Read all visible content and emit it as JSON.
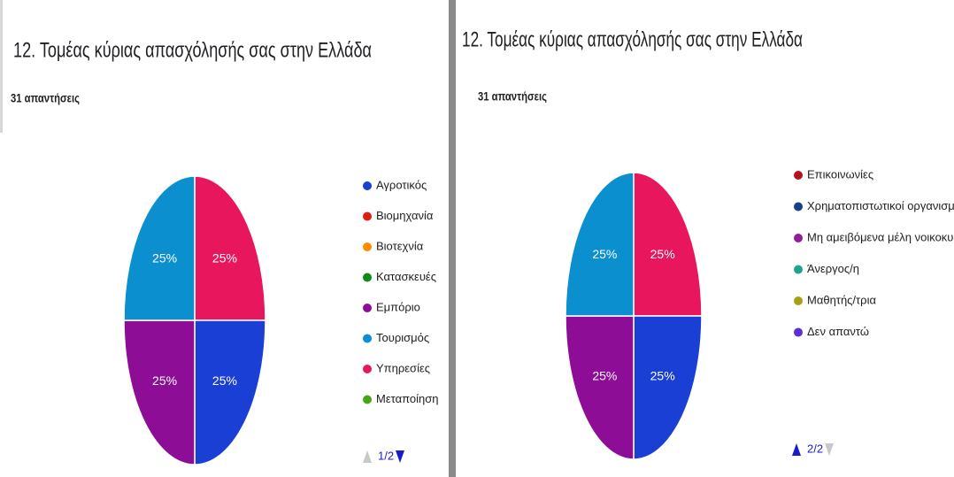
{
  "chart_data": [
    {
      "type": "pie",
      "title": "12. Τομέας κύριας απασχόλησής σας στην Ελλάδα",
      "subtitle": "31 απαντήσεις",
      "slices": [
        {
          "value": 25,
          "label": "25%",
          "color": "#e8175d"
        },
        {
          "value": 25,
          "label": "25%",
          "color": "#1a3fd4"
        },
        {
          "value": 25,
          "label": "25%",
          "color": "#8e0d96"
        },
        {
          "value": 25,
          "label": "25%",
          "color": "#0b8fcf"
        }
      ],
      "legend": [
        {
          "name": "Αγροτικός",
          "color": "#1a3fd4"
        },
        {
          "name": "Βιομηχανία",
          "color": "#dc1f12"
        },
        {
          "name": "Βιοτεχνία",
          "color": "#ff8c00"
        },
        {
          "name": "Κατασκευές",
          "color": "#0f8a1a"
        },
        {
          "name": "Εμπόριο",
          "color": "#8e0d96"
        },
        {
          "name": "Τουρισμός",
          "color": "#0b8fcf"
        },
        {
          "name": "Υπηρεσίες",
          "color": "#e8175d"
        },
        {
          "name": "Μεταποίηση",
          "color": "#4aa516"
        }
      ],
      "pager": "1/2"
    },
    {
      "type": "pie",
      "title": "12. Τομέας κύριας απασχόλησής σας στην Ελλάδα",
      "subtitle": "31 απαντήσεις",
      "slices": [
        {
          "value": 25,
          "label": "25%",
          "color": "#e8175d"
        },
        {
          "value": 25,
          "label": "25%",
          "color": "#1a3fd4"
        },
        {
          "value": 25,
          "label": "25%",
          "color": "#8e0d96"
        },
        {
          "value": 25,
          "label": "25%",
          "color": "#0b8fcf"
        }
      ],
      "legend": [
        {
          "name": "Επικοινωνίες",
          "color": "#b5121b"
        },
        {
          "name": "Χρηματοπιστωτικοί οργανισμοί",
          "color": "#173f8a"
        },
        {
          "name": "Μη αμειβόμενα μέλη νοικοκυριού",
          "color": "#8e1f96"
        },
        {
          "name": "Άνεργος/η",
          "color": "#1fa38c"
        },
        {
          "name": "Μαθητής/τρια",
          "color": "#a8a012"
        },
        {
          "name": "Δεν απαντώ",
          "color": "#5a2ed1"
        }
      ],
      "pager": "2/2"
    }
  ]
}
